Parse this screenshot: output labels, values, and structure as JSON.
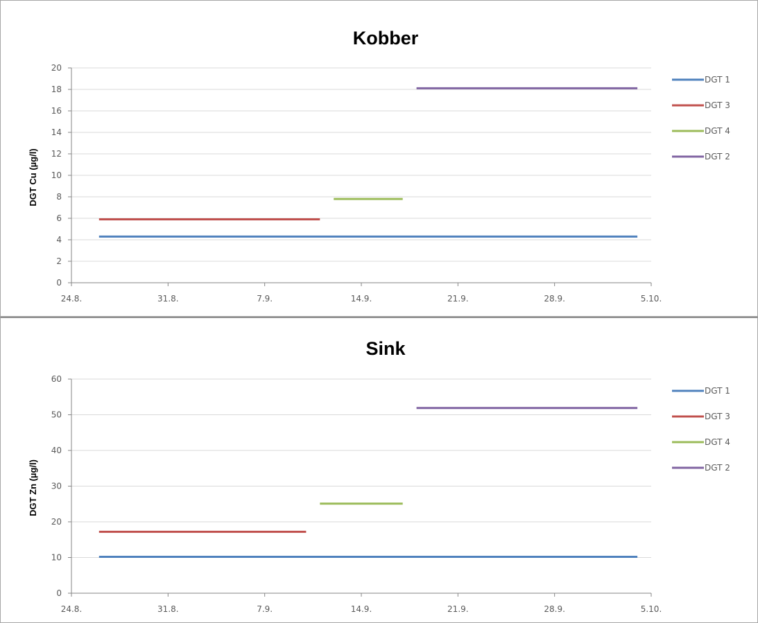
{
  "chart_data": [
    {
      "type": "line",
      "title": "Kobber",
      "ylabel": "DGT Cu (µg/l)",
      "xlabel": "",
      "ylim": [
        0,
        20
      ],
      "yticks": [
        "0",
        "2",
        "4",
        "6",
        "8",
        "10",
        "12",
        "14",
        "16",
        "18",
        "20"
      ],
      "xlim": [
        "24.8.",
        "5.10."
      ],
      "xticks": [
        "24.8.",
        "31.8.",
        "7.9.",
        "14.9.",
        "21.9.",
        "28.9.",
        "5.10."
      ],
      "grid": true,
      "legend": "right",
      "series": [
        {
          "name": "DGT 1",
          "color": "#4f81bd",
          "x": [
            "26.8.",
            "4.10."
          ],
          "y": [
            4.3,
            4.3
          ]
        },
        {
          "name": "DGT 3",
          "color": "#c0504d",
          "x": [
            "26.8.",
            "11.9."
          ],
          "y": [
            5.9,
            5.9
          ]
        },
        {
          "name": "DGT 4",
          "color": "#9bbb59",
          "x": [
            "12.9.",
            "17.9."
          ],
          "y": [
            7.8,
            7.8
          ]
        },
        {
          "name": "DGT 2",
          "color": "#8064a2",
          "x": [
            "18.9.",
            "4.10."
          ],
          "y": [
            18.1,
            18.1
          ]
        }
      ]
    },
    {
      "type": "line",
      "title": "Sink",
      "ylabel": "DGT Zn (µg/l)",
      "xlabel": "",
      "ylim": [
        0,
        60
      ],
      "yticks": [
        "0",
        "10",
        "20",
        "30",
        "40",
        "50",
        "60"
      ],
      "xlim": [
        "24.8.",
        "5.10."
      ],
      "xticks": [
        "24.8.",
        "31.8.",
        "7.9.",
        "14.9.",
        "21.9.",
        "28.9.",
        "5.10."
      ],
      "grid": true,
      "legend": "right",
      "series": [
        {
          "name": "DGT 1",
          "color": "#4f81bd",
          "x": [
            "26.8.",
            "4.10."
          ],
          "y": [
            10.2,
            10.2
          ]
        },
        {
          "name": "DGT 3",
          "color": "#c0504d",
          "x": [
            "26.8.",
            "10.9."
          ],
          "y": [
            17.2,
            17.2
          ]
        },
        {
          "name": "DGT 4",
          "color": "#9bbb59",
          "x": [
            "11.9.",
            "17.9."
          ],
          "y": [
            25.1,
            25.1
          ]
        },
        {
          "name": "DGT 2",
          "color": "#8064a2",
          "x": [
            "18.9.",
            "4.10."
          ],
          "y": [
            51.9,
            51.9
          ]
        }
      ]
    }
  ]
}
